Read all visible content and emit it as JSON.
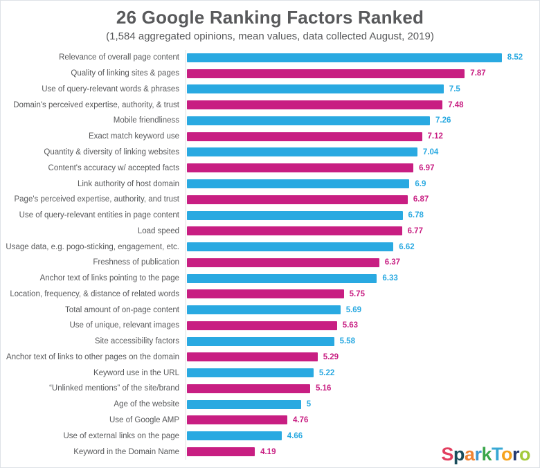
{
  "header": {
    "title": "26 Google Ranking Factors Ranked",
    "subtitle": "(1,584 aggregated opinions, mean values, data collected August, 2019)"
  },
  "chart_data": {
    "type": "bar",
    "orientation": "horizontal",
    "title": "26 Google Ranking Factors Ranked",
    "subtitle": "(1,584 aggregated opinions, mean values, data collected August, 2019)",
    "axis_min": 3,
    "axis_max": 8.7,
    "grid": false,
    "legend": "none",
    "bar_colors_alternating": [
      "#29a9e1",
      "#c81e82"
    ],
    "categories": [
      "Relevance of overall page content",
      "Quality of linking sites & pages",
      "Use of query-relevant words & phrases",
      "Domain's perceived expertise, authority, & trust",
      "Mobile friendliness",
      "Exact match keyword use",
      "Quantity & diversity of linking websites",
      "Content's accuracy w/ accepted facts",
      "Link authority of host domain",
      "Page's perceived expertise, authority, and trust",
      "Use of query-relevant entities in page content",
      "Load speed",
      "Usage data, e.g. pogo-sticking, engagement, etc.",
      "Freshness of publication",
      "Anchor text of links pointing to the page",
      "Location, frequency, & distance of related words",
      "Total amount of on-page content",
      "Use of unique, relevant images",
      "Site accessibility factors",
      "Anchor text of links to other pages on the domain",
      "Keyword use in the URL",
      "“Unlinked mentions” of the site/brand",
      "Age of the website",
      "Use of Google AMP",
      "Use of external links on the page",
      "Keyword in the Domain Name"
    ],
    "values": [
      8.52,
      7.87,
      7.5,
      7.48,
      7.26,
      7.12,
      7.04,
      6.97,
      6.9,
      6.87,
      6.78,
      6.77,
      6.62,
      6.37,
      6.33,
      5.75,
      5.69,
      5.63,
      5.58,
      5.29,
      5.22,
      5.16,
      5,
      4.76,
      4.66,
      4.19
    ],
    "value_labels": [
      "8.52",
      "7.87",
      "7.5",
      "7.48",
      "7.26",
      "7.12",
      "7.04",
      "6.97",
      "6.9",
      "6.87",
      "6.78",
      "6.77",
      "6.62",
      "6.37",
      "6.33",
      "5.75",
      "5.69",
      "5.63",
      "5.58",
      "5.29",
      "5.22",
      "5.16",
      "5",
      "4.76",
      "4.66",
      "4.19"
    ]
  },
  "logo": {
    "text": "SparkToro",
    "letters": [
      {
        "ch": "S",
        "color": "#e23e5f"
      },
      {
        "ch": "p",
        "color": "#194d5c"
      },
      {
        "ch": "a",
        "color": "#ef8333"
      },
      {
        "ch": "r",
        "color": "#3e96d1"
      },
      {
        "ch": "k",
        "color": "#3aa64a"
      },
      {
        "ch": "T",
        "color": "#38a8d4"
      },
      {
        "ch": "o",
        "color": "#f6a21c"
      },
      {
        "ch": "r",
        "color": "#24386f"
      },
      {
        "ch": "o",
        "color": "#a3c93b"
      }
    ]
  },
  "colors": {
    "text_gray": "#58595b",
    "axis_line": "#dcdcdc",
    "border": "#dde2e6",
    "background": "#ffffff"
  }
}
